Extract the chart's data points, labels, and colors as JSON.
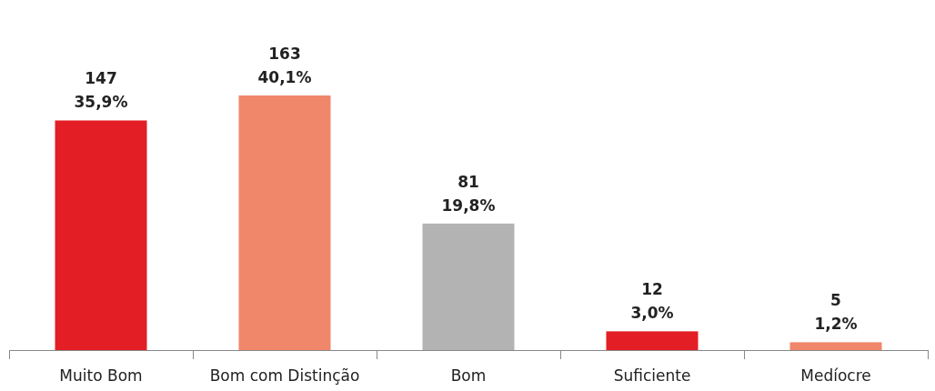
{
  "chart_data": {
    "type": "bar",
    "categories": [
      "Muito Bom",
      "Bom com Distinção",
      "Bom",
      "Suficiente",
      "Medíocre"
    ],
    "values": [
      147,
      163,
      81,
      12,
      5
    ],
    "colors": [
      "#e31e24",
      "#f0866a",
      "#b3b3b3",
      "#e31e24",
      "#f0866a"
    ],
    "value_labels": [
      "147\n35,9%",
      "163\n40,1%",
      "81\n19,8%",
      "12\n3,0%",
      "5\n1,2%"
    ]
  }
}
